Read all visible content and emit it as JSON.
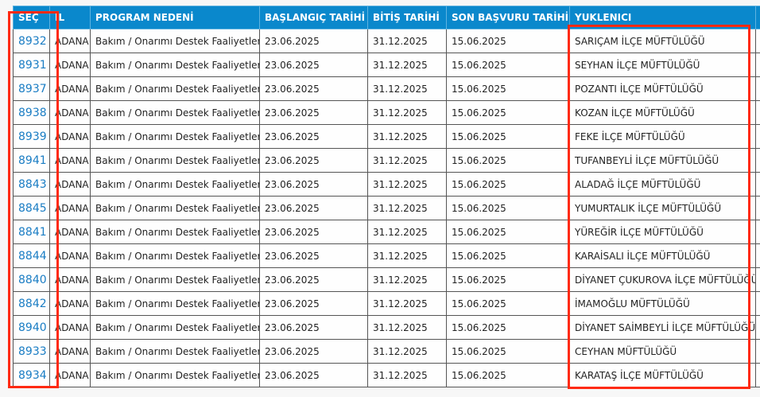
{
  "headers": [
    "SEÇ",
    "İL",
    "PROGRAM NEDENİ",
    "BAŞLANGIÇ TARİHİ",
    "BİTİŞ TARİHİ",
    "SON BAŞVURU TARİHİ",
    "YUKLENICI",
    ""
  ],
  "rows": [
    {
      "id": "8932",
      "il": "ADANA",
      "program": "Bakım / Onarımı Destek Faaliyetleri",
      "start": "23.06.2025",
      "end": "31.12.2025",
      "deadline": "15.06.2025",
      "contractor": "SARIÇAM İLÇE MÜFTÜLÜĞÜ"
    },
    {
      "id": "8931",
      "il": "ADANA",
      "program": "Bakım / Onarımı Destek Faaliyetleri",
      "start": "23.06.2025",
      "end": "31.12.2025",
      "deadline": "15.06.2025",
      "contractor": "SEYHAN İLÇE MÜFTÜLÜĞÜ"
    },
    {
      "id": "8937",
      "il": "ADANA",
      "program": "Bakım / Onarımı Destek Faaliyetleri",
      "start": "23.06.2025",
      "end": "31.12.2025",
      "deadline": "15.06.2025",
      "contractor": "POZANTI İLÇE MÜFTÜLÜĞÜ"
    },
    {
      "id": "8938",
      "il": "ADANA",
      "program": "Bakım / Onarımı Destek Faaliyetleri",
      "start": "23.06.2025",
      "end": "31.12.2025",
      "deadline": "15.06.2025",
      "contractor": "KOZAN İLÇE MÜFTÜLÜĞÜ"
    },
    {
      "id": "8939",
      "il": "ADANA",
      "program": "Bakım / Onarımı Destek Faaliyetleri",
      "start": "23.06.2025",
      "end": "31.12.2025",
      "deadline": "15.06.2025",
      "contractor": "FEKE İLÇE MÜFTÜLÜĞÜ"
    },
    {
      "id": "8941",
      "il": "ADANA",
      "program": "Bakım / Onarımı Destek Faaliyetleri",
      "start": "23.06.2025",
      "end": "31.12.2025",
      "deadline": "15.06.2025",
      "contractor": "TUFANBEYLİ İLÇE MÜFTÜLÜĞÜ"
    },
    {
      "id": "8843",
      "il": "ADANA",
      "program": "Bakım / Onarımı Destek Faaliyetleri",
      "start": "23.06.2025",
      "end": "31.12.2025",
      "deadline": "15.06.2025",
      "contractor": "ALADAĞ İLÇE MÜFTÜLÜĞÜ"
    },
    {
      "id": "8845",
      "il": "ADANA",
      "program": "Bakım / Onarımı Destek Faaliyetleri",
      "start": "23.06.2025",
      "end": "31.12.2025",
      "deadline": "15.06.2025",
      "contractor": "YUMURTALIK İLÇE MÜFTÜLÜĞÜ"
    },
    {
      "id": "8841",
      "il": "ADANA",
      "program": "Bakım / Onarımı Destek Faaliyetleri",
      "start": "23.06.2025",
      "end": "31.12.2025",
      "deadline": "15.06.2025",
      "contractor": "YÜREĞİR İLÇE MÜFTÜLÜĞÜ"
    },
    {
      "id": "8844",
      "il": "ADANA",
      "program": "Bakım / Onarımı Destek Faaliyetleri",
      "start": "23.06.2025",
      "end": "31.12.2025",
      "deadline": "15.06.2025",
      "contractor": "KARAİSALI İLÇE MÜFTÜLÜĞÜ"
    },
    {
      "id": "8840",
      "il": "ADANA",
      "program": "Bakım / Onarımı Destek Faaliyetleri",
      "start": "23.06.2025",
      "end": "31.12.2025",
      "deadline": "15.06.2025",
      "contractor": "DİYANET ÇUKUROVA İLÇE MÜFTÜLÜĞÜ"
    },
    {
      "id": "8842",
      "il": "ADANA",
      "program": "Bakım / Onarımı Destek Faaliyetleri",
      "start": "23.06.2025",
      "end": "31.12.2025",
      "deadline": "15.06.2025",
      "contractor": "İMAMOĞLU MÜFTÜLÜĞÜ"
    },
    {
      "id": "8940",
      "il": "ADANA",
      "program": "Bakım / Onarımı Destek Faaliyetleri",
      "start": "23.06.2025",
      "end": "31.12.2025",
      "deadline": "15.06.2025",
      "contractor": "DİYANET SAİMBEYLİ İLÇE MÜFTÜLÜĞÜ"
    },
    {
      "id": "8933",
      "il": "ADANA",
      "program": "Bakım / Onarımı Destek Faaliyetleri",
      "start": "23.06.2025",
      "end": "31.12.2025",
      "deadline": "15.06.2025",
      "contractor": "CEYHAN MÜFTÜLÜĞÜ"
    },
    {
      "id": "8934",
      "il": "ADANA",
      "program": "Bakım / Onarımı Destek Faaliyetleri",
      "start": "23.06.2025",
      "end": "31.12.2025",
      "deadline": "15.06.2025",
      "contractor": "KARATAŞ İLÇE MÜFTÜLÜĞÜ"
    }
  ],
  "colors": {
    "header_bg": "#0a88cc",
    "link": "#1a7dc4",
    "highlight": "#ff2a12"
  }
}
